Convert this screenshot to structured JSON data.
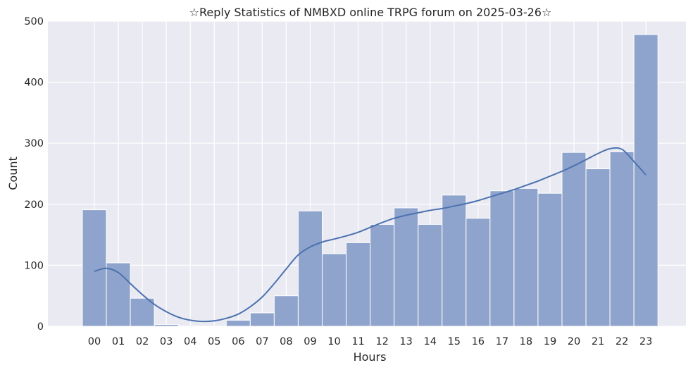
{
  "chart_data": {
    "type": "bar",
    "title": "☆Reply Statistics of NMBXD online TRPG forum on 2025-03-26☆",
    "xlabel": "Hours",
    "ylabel": "Count",
    "categories": [
      "00",
      "01",
      "02",
      "03",
      "04",
      "05",
      "06",
      "07",
      "08",
      "09",
      "10",
      "11",
      "12",
      "13",
      "14",
      "15",
      "16",
      "17",
      "18",
      "19",
      "20",
      "21",
      "22",
      "23"
    ],
    "values": [
      191,
      104,
      46,
      3,
      0,
      0,
      10,
      22,
      50,
      189,
      119,
      137,
      167,
      194,
      167,
      215,
      177,
      222,
      226,
      218,
      285,
      258,
      286,
      478
    ],
    "kde": {
      "x": [
        0,
        0.5,
        1,
        1.5,
        2,
        2.5,
        3,
        3.5,
        4,
        4.5,
        5,
        5.5,
        6,
        6.5,
        7,
        7.5,
        8,
        8.5,
        9,
        9.5,
        10,
        10.5,
        11,
        11.5,
        12,
        12.5,
        13,
        13.5,
        14,
        14.5,
        15,
        15.5,
        16,
        16.5,
        17,
        17.5,
        18,
        18.5,
        19,
        19.5,
        20,
        20.5,
        21,
        21.5,
        22,
        22.5,
        23
      ],
      "y": [
        90,
        95,
        88,
        70,
        52,
        36,
        24,
        15,
        10,
        8,
        9,
        13,
        20,
        32,
        48,
        70,
        94,
        117,
        130,
        138,
        143,
        148,
        154,
        162,
        170,
        177,
        182,
        186,
        190,
        193,
        197,
        201,
        206,
        212,
        218,
        224,
        231,
        238,
        246,
        254,
        263,
        273,
        283,
        291,
        290,
        270,
        248
      ]
    },
    "yticks": [
      0,
      100,
      200,
      300,
      400,
      500
    ],
    "ylim": [
      0,
      500
    ],
    "grid": true,
    "colors": {
      "bar_fill": "#8fa4cc",
      "bar_edge": "#ffffff",
      "kde_line": "#4c72b0",
      "plot_bg": "#eaeaf2",
      "grid": "#ffffff"
    }
  }
}
